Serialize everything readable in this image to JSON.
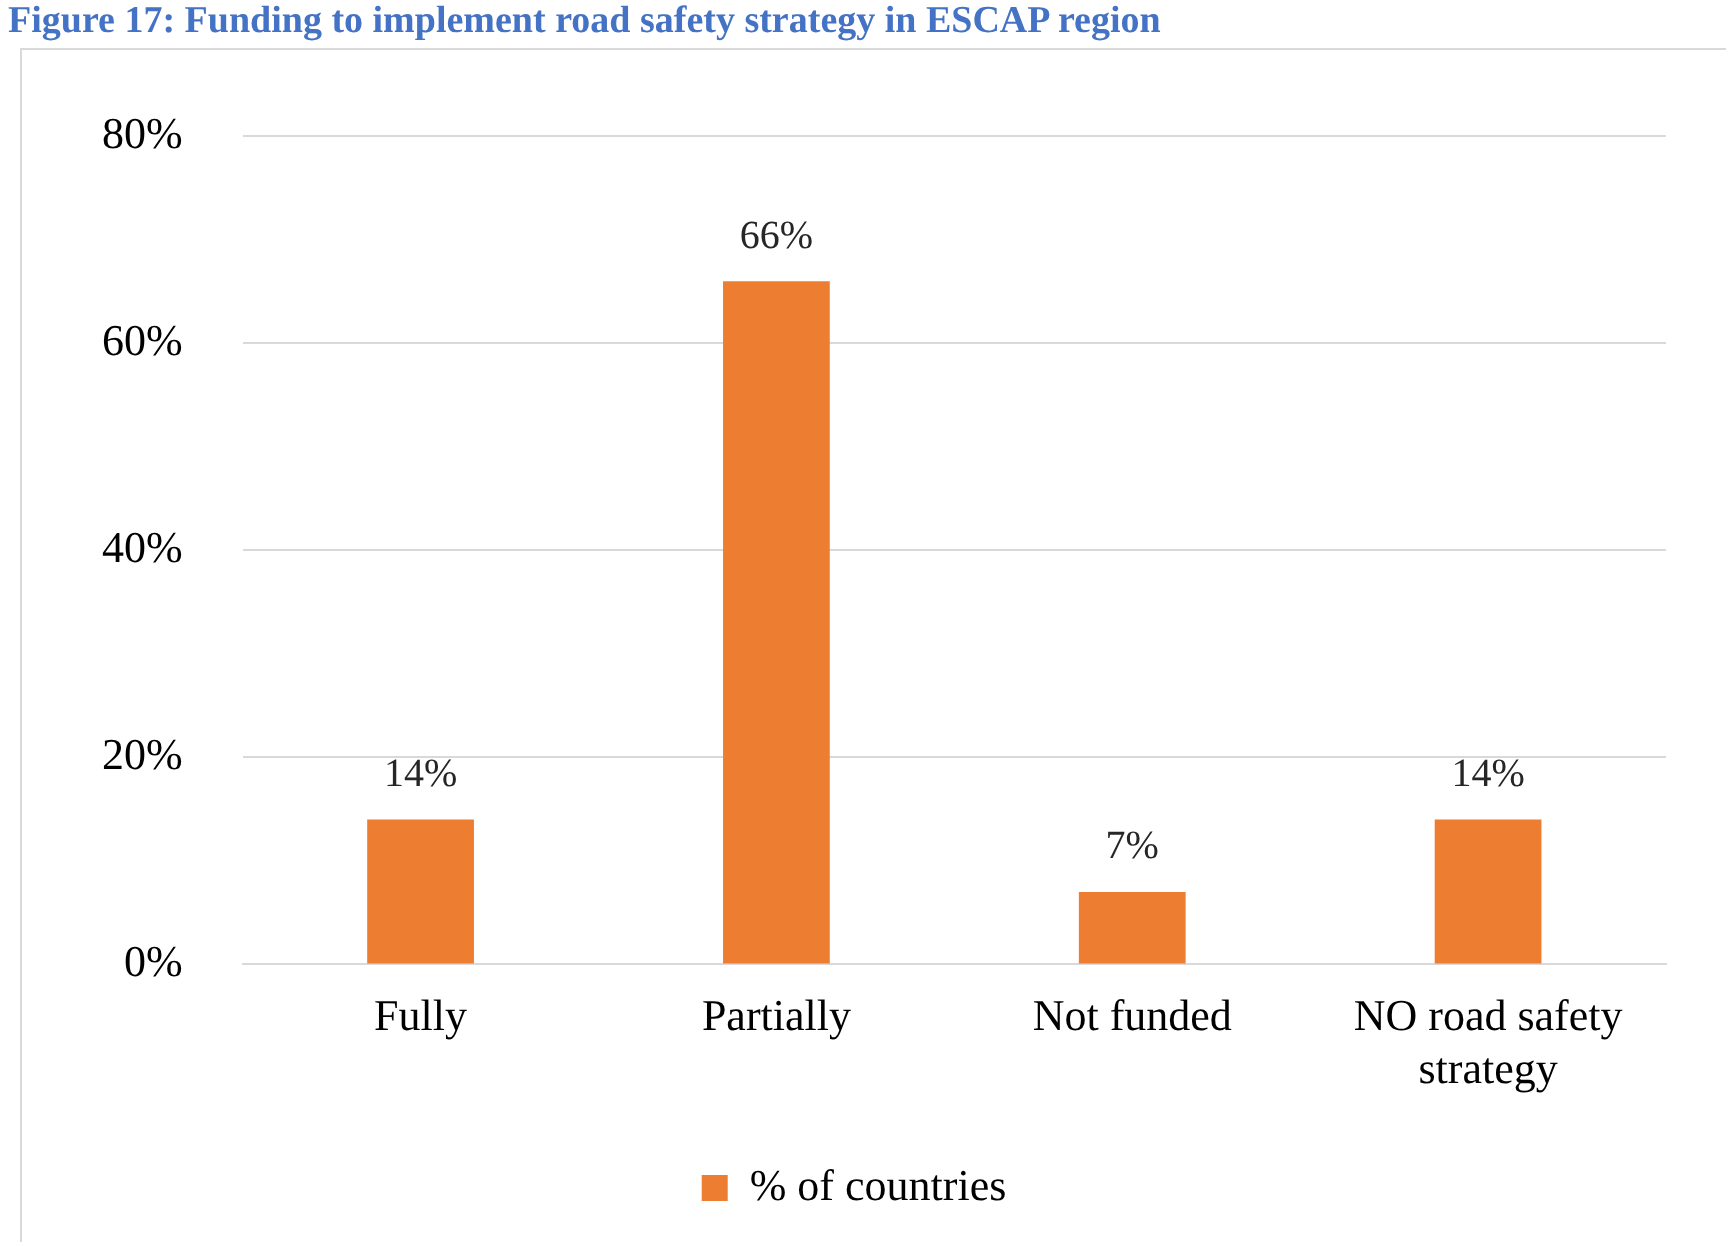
{
  "chart_data": {
    "type": "bar",
    "title": "Figure 17: Funding to implement road safety strategy in ESCAP region",
    "categories": [
      "Fully",
      "Partially",
      "Not funded",
      "NO road safety strategy"
    ],
    "series": [
      {
        "name": "% of countries",
        "color": "#ed7d31",
        "values": [
          14,
          66,
          7,
          14
        ],
        "value_labels": [
          "14%",
          "66%",
          "7%",
          "14%"
        ]
      }
    ],
    "ylim": [
      0,
      80
    ],
    "yticks": [
      {
        "value": 0,
        "label": "0%"
      },
      {
        "value": 20,
        "label": "20%"
      },
      {
        "value": 40,
        "label": "40%"
      },
      {
        "value": 60,
        "label": "60%"
      },
      {
        "value": 80,
        "label": "80%"
      }
    ],
    "grid": "y",
    "legend": "bottom"
  }
}
